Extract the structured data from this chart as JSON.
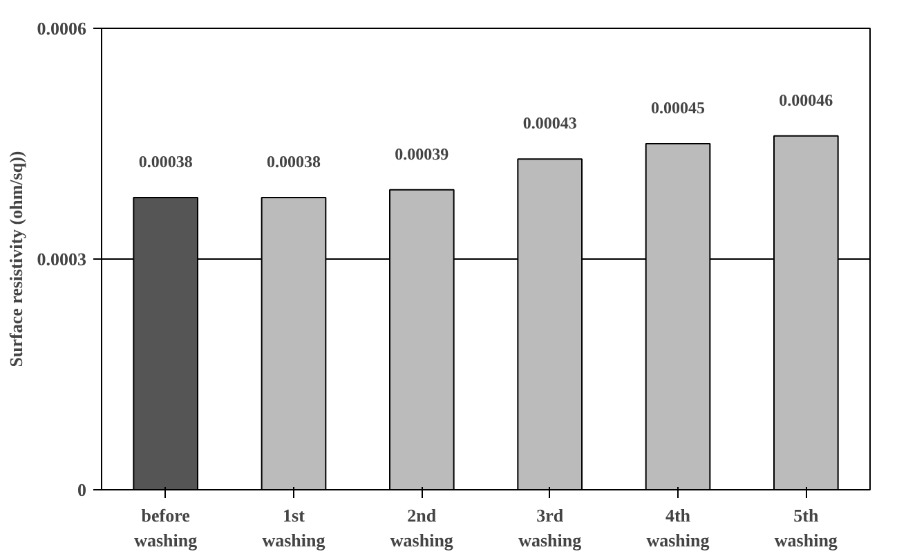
{
  "chart_data": {
    "type": "bar",
    "ylabel": "Surface resistivity (ohm/sq))",
    "categories": [
      "before\nwashing",
      "1st\nwashing",
      "2nd\nwashing",
      "3rd\nwashing",
      "4th\nwashing",
      "5th\nwashing"
    ],
    "values": [
      0.00038,
      0.00038,
      0.00039,
      0.00043,
      0.00045,
      0.00046
    ],
    "colors": [
      "#555555",
      "#bbbbbb",
      "#bbbbbb",
      "#bbbbbb",
      "#bbbbbb",
      "#bbbbbb"
    ],
    "ylim": [
      0,
      0.0006
    ],
    "yticks": [
      0,
      0.0003,
      0.0006
    ],
    "grid": "y",
    "data_labels": true
  }
}
